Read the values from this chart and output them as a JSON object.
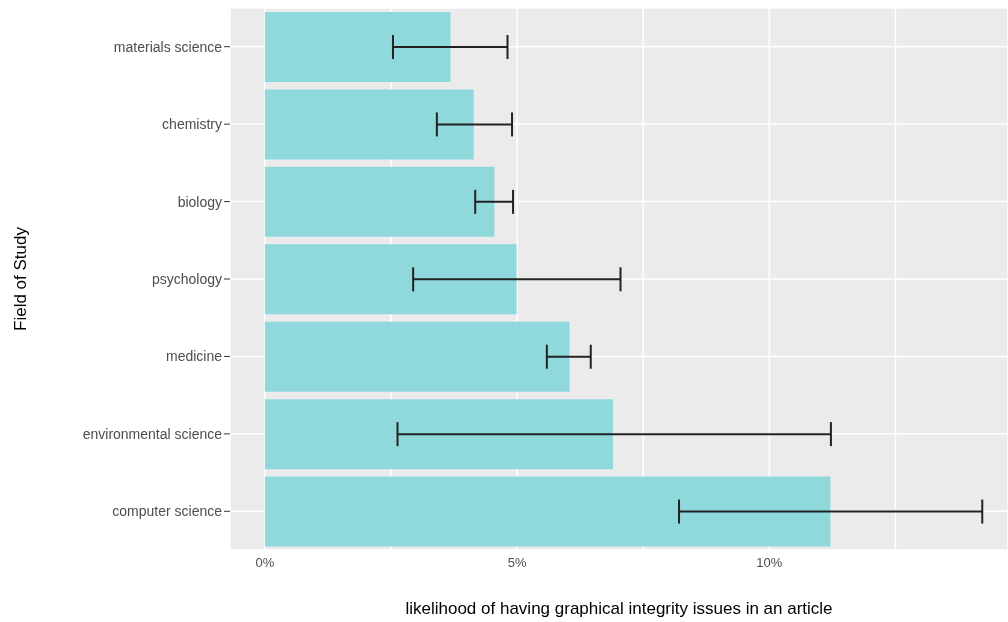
{
  "chart_data": {
    "type": "bar",
    "orientation": "horizontal",
    "xlabel": "likelihood of having graphical integrity issues in an article",
    "ylabel": "Field of Study",
    "categories": [
      "materials science",
      "chemistry",
      "biology",
      "psychology",
      "medicine",
      "environmental science",
      "computer science"
    ],
    "values": [
      3.68,
      4.14,
      4.55,
      4.99,
      6.04,
      6.9,
      11.21
    ],
    "errors": [
      [
        2.54,
        4.81
      ],
      [
        3.41,
        4.9
      ],
      [
        4.17,
        4.92
      ],
      [
        2.94,
        7.05
      ],
      [
        5.59,
        6.46
      ],
      [
        2.63,
        11.22
      ],
      [
        8.21,
        14.22
      ]
    ],
    "color": "#8fd9dc",
    "xlim": [
      -0.69,
      14.73
    ],
    "xticks": [
      {
        "value": 0,
        "label": "0%"
      },
      {
        "value": 2.5,
        "label": null
      },
      {
        "value": 5,
        "label": "5%"
      },
      {
        "value": 7.5,
        "label": null
      },
      {
        "value": 10,
        "label": "10%"
      },
      {
        "value": 12.5,
        "label": null
      }
    ],
    "grid": true
  }
}
